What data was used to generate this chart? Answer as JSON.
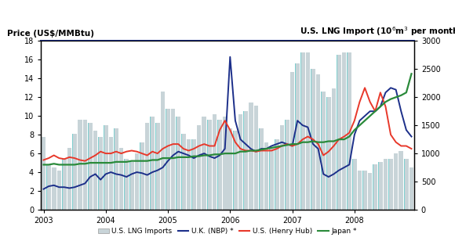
{
  "title_left": "Price (US$/MMBtu)",
  "title_right": "U.S. LNG Import (10$^6$m$^3$ per month)",
  "ylim_left": [
    0,
    18
  ],
  "ylim_right": [
    0,
    3000
  ],
  "yticks_left": [
    0,
    2,
    4,
    6,
    8,
    10,
    12,
    14,
    16,
    18
  ],
  "yticks_right": [
    0,
    500,
    1000,
    1500,
    2000,
    2500,
    3000
  ],
  "xtick_labels": [
    "2003",
    "2004",
    "2005",
    "2006",
    "2007",
    "2008"
  ],
  "bar_color": "#c8d4d8",
  "bar_edgecolor": "#aabbbf",
  "bar_left_highlight": "#7ecece",
  "nbp_color": "#1c2f8a",
  "henry_color": "#e8382a",
  "japan_color": "#2a8a3a",
  "legend_labels": [
    "U.S. LNG Imports",
    "U.K. (NBP) *",
    "U.S. (Henry Hub)",
    "Japan *"
  ],
  "lng_imports": [
    1300,
    800,
    750,
    700,
    900,
    1100,
    1350,
    1600,
    1600,
    1550,
    1400,
    1300,
    1500,
    1300,
    1450,
    1100,
    900,
    850,
    1000,
    1200,
    1550,
    1650,
    1550,
    2100,
    1800,
    1800,
    1650,
    1350,
    1250,
    1250,
    1500,
    1650,
    1600,
    1700,
    1600,
    1650,
    1450,
    1400,
    1700,
    1750,
    1900,
    1850,
    1450,
    1200,
    1100,
    1250,
    1500,
    1600,
    2450,
    2600,
    2800,
    2800,
    2500,
    2400,
    2100,
    2000,
    2150,
    2750,
    2800,
    2800,
    900,
    700,
    700,
    650,
    800,
    850,
    900,
    900,
    1000,
    1050,
    900,
    750
  ],
  "nbp_price": [
    2.2,
    2.5,
    2.6,
    2.4,
    2.4,
    2.3,
    2.4,
    2.6,
    2.8,
    3.5,
    3.8,
    3.2,
    3.8,
    4.0,
    3.8,
    3.7,
    3.5,
    3.8,
    4.0,
    3.9,
    3.7,
    4.0,
    4.2,
    4.5,
    5.2,
    5.8,
    6.2,
    6.0,
    5.8,
    5.5,
    5.8,
    6.0,
    5.7,
    5.5,
    5.8,
    6.5,
    16.3,
    9.5,
    7.5,
    7.0,
    6.5,
    6.2,
    6.5,
    6.5,
    6.8,
    7.0,
    7.2,
    7.0,
    6.8,
    9.5,
    9.0,
    8.8,
    7.0,
    6.5,
    3.8,
    3.5,
    3.8,
    4.2,
    4.5,
    4.8,
    8.0,
    9.5,
    10.0,
    10.5,
    10.5,
    11.0,
    12.5,
    13.0,
    12.8,
    10.5,
    8.5,
    7.8
  ],
  "henry_price": [
    5.3,
    5.5,
    5.8,
    5.5,
    5.4,
    5.6,
    5.5,
    5.3,
    5.2,
    5.5,
    5.8,
    6.2,
    6.0,
    6.0,
    6.2,
    6.0,
    6.2,
    6.3,
    6.2,
    6.0,
    5.8,
    6.2,
    6.0,
    6.5,
    6.8,
    7.0,
    7.0,
    6.5,
    6.3,
    6.5,
    6.8,
    7.0,
    6.8,
    6.8,
    8.5,
    9.5,
    8.5,
    7.2,
    6.5,
    6.3,
    6.3,
    6.2,
    6.3,
    6.3,
    6.3,
    6.5,
    6.8,
    7.0,
    6.8,
    7.0,
    7.5,
    7.8,
    7.5,
    7.0,
    5.8,
    6.2,
    6.8,
    7.5,
    7.8,
    8.2,
    9.5,
    11.5,
    13.0,
    11.5,
    10.5,
    12.5,
    11.0,
    8.0,
    7.2,
    6.8,
    6.8,
    6.5
  ],
  "japan_price": [
    4.8,
    4.8,
    4.9,
    4.8,
    4.8,
    4.8,
    4.8,
    4.9,
    4.9,
    5.0,
    5.0,
    5.0,
    5.0,
    5.0,
    5.1,
    5.1,
    5.1,
    5.2,
    5.2,
    5.2,
    5.2,
    5.3,
    5.3,
    5.5,
    5.5,
    5.5,
    5.6,
    5.6,
    5.6,
    5.7,
    5.7,
    5.8,
    5.8,
    5.9,
    5.9,
    6.0,
    6.0,
    6.0,
    6.2,
    6.2,
    6.3,
    6.3,
    6.4,
    6.5,
    6.6,
    6.7,
    6.8,
    6.9,
    7.0,
    7.0,
    7.2,
    7.2,
    7.3,
    7.2,
    7.2,
    7.3,
    7.3,
    7.5,
    7.5,
    7.8,
    8.5,
    9.0,
    9.5,
    10.0,
    10.5,
    11.0,
    11.5,
    11.8,
    12.0,
    12.2,
    12.5,
    14.5
  ]
}
